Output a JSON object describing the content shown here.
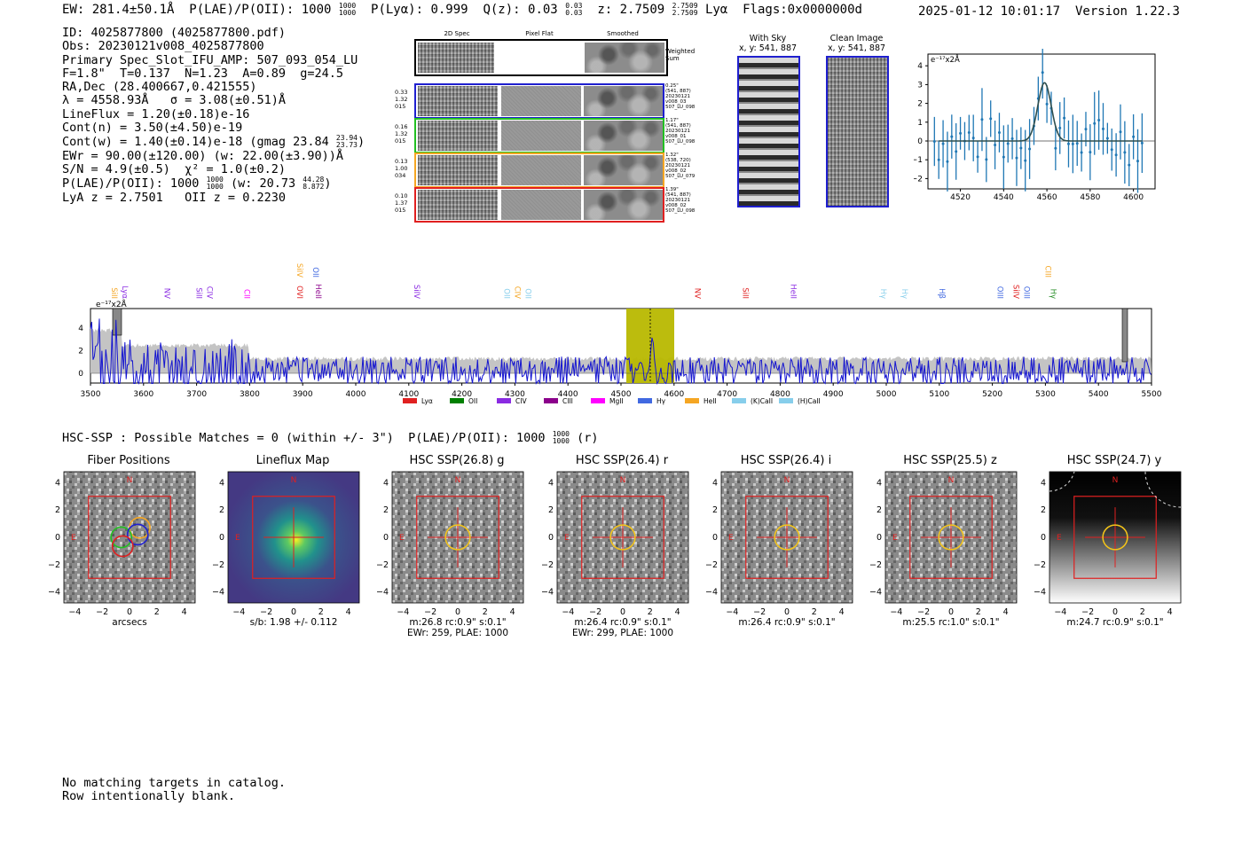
{
  "header": {
    "ew": "EW: 281.4±50.1Å",
    "plae_label": "P(LAE)/P(OII): 1000",
    "plae_hi": "1000",
    "plae_lo": "1000",
    "plya": "P(Lyα): 0.999",
    "qz_label": "Q(z): 0.03",
    "qz_hi": "0.03",
    "qz_lo": "0.03",
    "z_label": "z: 2.7509",
    "z_hi": "2.7509",
    "z_lo": "2.7509",
    "z_line": "Lyα",
    "flags": "Flags:0x0000000d",
    "timestamp": "2025-01-12 10:01:17",
    "version": "Version 1.22.3"
  },
  "info": {
    "id": "ID: 4025877800 (4025877800.pdf)",
    "obs": "Obs: 20230121v008_4025877800",
    "primary": "Primary Spec_Slot_IFU_AMP: 507_093_054_LU",
    "fiber": "F=1.8\"  T=0.137  N=1.23  A=0.89  g=24.5",
    "radec": "RA,Dec (28.400667,0.421555)",
    "lambda": "λ = 4558.93Å   σ = 3.08(±0.51)Å",
    "lineflux": "LineFlux = 1.20(±0.18)e-16",
    "contn": "Cont(n) = 3.50(±4.50)e-19",
    "contw": "Cont(w) = 1.40(±0.14)e-18 (gmag 23.84",
    "contw_hi": "23.94",
    "contw_lo": "23.73",
    "ewr": "EWr = 90.00(±120.00) (w: 22.00(±3.90))Å",
    "sn": "S/N = 4.9(±0.5)  χ² = 1.0(±0.2)",
    "plae": "P(LAE)/P(OII): 1000",
    "plae_hi": "1000",
    "plae_lo": "1000",
    "plae_w": "(w: 20.73",
    "plae_w_hi": "44.28",
    "plae_w_lo": "8.872",
    "redshifts": "LyA z = 2.7501   OII z = 0.2230"
  },
  "spec2d": {
    "col_titles": [
      "2D Spec",
      "Pixel Flat",
      "Smoothed"
    ],
    "weighted_sum": "Weighted Sum",
    "rows": [
      {
        "vals": [
          "0.33",
          "1.32",
          "015"
        ],
        "color": "#1f1fcf",
        "notes": [
          "0.25\"",
          "(541, 887)",
          "20230121",
          "v008_03",
          "507_LU_098"
        ]
      },
      {
        "vals": [
          "0.16",
          "1.32",
          "015"
        ],
        "color": "#22c022",
        "notes": [
          "1.17\"",
          "(541, 887)",
          "20230121",
          "v008_01",
          "507_LU_098"
        ]
      },
      {
        "vals": [
          "0.13",
          "1.00",
          "034"
        ],
        "color": "#f5a623",
        "notes": [
          "1.32\"",
          "(538, 720)",
          "20230121",
          "v008_02",
          "507_LU_079"
        ]
      },
      {
        "vals": [
          "0.10",
          "1.37",
          "015"
        ],
        "color": "#e02020",
        "notes": [
          "1.39\"",
          "(541, 887)",
          "20230121",
          "v008_02",
          "507_LU_098"
        ]
      }
    ]
  },
  "sky": {
    "with_sky": "With Sky",
    "with_sky_coords": "x, y: 541, 887",
    "clean": "Clean Image",
    "clean_coords": "x, y: 541, 887"
  },
  "zoom": {
    "ylabel": "e⁻¹⁷x2Å",
    "xticks": [
      "4520",
      "4540",
      "4560",
      "4580",
      "4600"
    ],
    "yticks": [
      "4",
      "3",
      "2",
      "1",
      "0",
      "−1",
      "−2"
    ]
  },
  "fullspec": {
    "ylabel": "e⁻¹⁷x2Å",
    "xticks": [
      "3500",
      "3600",
      "3700",
      "3800",
      "3900",
      "4000",
      "4100",
      "4200",
      "4300",
      "4400",
      "4500",
      "4600",
      "4700",
      "4800",
      "4900",
      "5000",
      "5100",
      "5200",
      "5300",
      "5400",
      "5500"
    ],
    "yticks": [
      "4",
      "2",
      "0"
    ],
    "lines": [
      {
        "label": "SiII",
        "color": "#f5a623",
        "row": 0
      },
      {
        "label": "Lyα",
        "color": "#8a2be2",
        "row": 0
      },
      {
        "label": "NV",
        "color": "#8a2be2",
        "row": 0
      },
      {
        "label": "SiII",
        "color": "#8a2be2",
        "row": 0
      },
      {
        "label": "CIV",
        "color": "#8a2be2",
        "row": 0
      },
      {
        "label": "CII",
        "color": "#ff00ff",
        "row": 0
      },
      {
        "label": "OVI",
        "color": "#e02020",
        "row": 0
      },
      {
        "label": "SiIV",
        "color": "#f5a623",
        "row": 1
      },
      {
        "label": "OII",
        "color": "#4169e1",
        "row": 1
      },
      {
        "label": "HeII",
        "color": "#8b008b",
        "row": 0
      },
      {
        "label": "SiIV",
        "color": "#8a2be2",
        "row": 0
      },
      {
        "label": "OII",
        "color": "#87ceeb",
        "row": 0
      },
      {
        "label": "CIV",
        "color": "#f5a623",
        "row": 0
      },
      {
        "label": "OII",
        "color": "#87ceeb",
        "row": 0
      },
      {
        "label": "NV",
        "color": "#e02020",
        "row": 0
      },
      {
        "label": "SiII",
        "color": "#e02020",
        "row": 0
      },
      {
        "label": "HeII",
        "color": "#8a2be2",
        "row": 0
      },
      {
        "label": "Hγ",
        "color": "#87ceeb",
        "row": 0
      },
      {
        "label": "Hγ",
        "color": "#87ceeb",
        "row": 0
      },
      {
        "label": "Hβ",
        "color": "#4169e1",
        "row": 0
      },
      {
        "label": "OIII",
        "color": "#4169e1",
        "row": 0
      },
      {
        "label": "SiIV",
        "color": "#e02020",
        "row": 0
      },
      {
        "label": "OIII",
        "color": "#4169e1",
        "row": 0
      },
      {
        "label": "CIII",
        "color": "#f5a623",
        "row": 1
      },
      {
        "label": "Hγ",
        "color": "#228b22",
        "row": 0
      }
    ],
    "legend": [
      {
        "label": "Lyα",
        "color": "#e02020"
      },
      {
        "label": "OII",
        "color": "#008000"
      },
      {
        "label": "CIV",
        "color": "#8a2be2"
      },
      {
        "label": "CIII",
        "color": "#8b008b"
      },
      {
        "label": "MgII",
        "color": "#ff00ff"
      },
      {
        "label": "Hγ",
        "color": "#4169e1"
      },
      {
        "label": "HeII",
        "color": "#f5a623"
      },
      {
        "label": "(K)CaII",
        "color": "#87ceeb"
      },
      {
        "label": "(H)CaII",
        "color": "#87ceeb"
      }
    ]
  },
  "hsc": {
    "summary": "HSC-SSP : Possible Matches = 0 (within +/- 3\")  P(LAE)/P(OII): 1000",
    "summary_hi": "1000",
    "summary_lo": "1000",
    "summary_tail": "(r)",
    "ticks": [
      "4",
      "2",
      "0",
      "−2",
      "−4"
    ],
    "xticks": [
      "−4",
      "−2",
      "0",
      "2",
      "4"
    ],
    "panels": [
      {
        "title": "Fiber Positions",
        "caption1": "arcsecs",
        "caption2": "",
        "kind": "fiber"
      },
      {
        "title": "Lineflux Map",
        "caption1": "s/b: 1.98 +/- 0.112",
        "caption2": "",
        "kind": "flux"
      },
      {
        "title": "HSC SSP(26.8) g",
        "caption1": "m:26.8 rc:0.9\"  s:0.1\"",
        "caption2": "EWr: 259, PLAE: 1000",
        "kind": "noise"
      },
      {
        "title": "HSC SSP(26.4) r",
        "caption1": "m:26.4 rc:0.9\"  s:0.1\"",
        "caption2": "EWr: 299, PLAE: 1000",
        "kind": "noise"
      },
      {
        "title": "HSC SSP(26.4) i",
        "caption1": "m:26.4 rc:0.9\"  s:0.1\"",
        "caption2": "",
        "kind": "noise"
      },
      {
        "title": "HSC SSP(25.5) z",
        "caption1": "m:25.5 rc:1.0\"  s:0.1\"",
        "caption2": "",
        "kind": "noise"
      },
      {
        "title": "HSC SSP(24.7) y",
        "caption1": "m:24.7 rc:0.9\"  s:0.1\"",
        "caption2": "",
        "kind": "dark"
      }
    ],
    "compass_n": "N",
    "compass_e": "E"
  },
  "footer": {
    "line1": "No matching targets in catalog.",
    "line2": "Row intentionally blank."
  }
}
